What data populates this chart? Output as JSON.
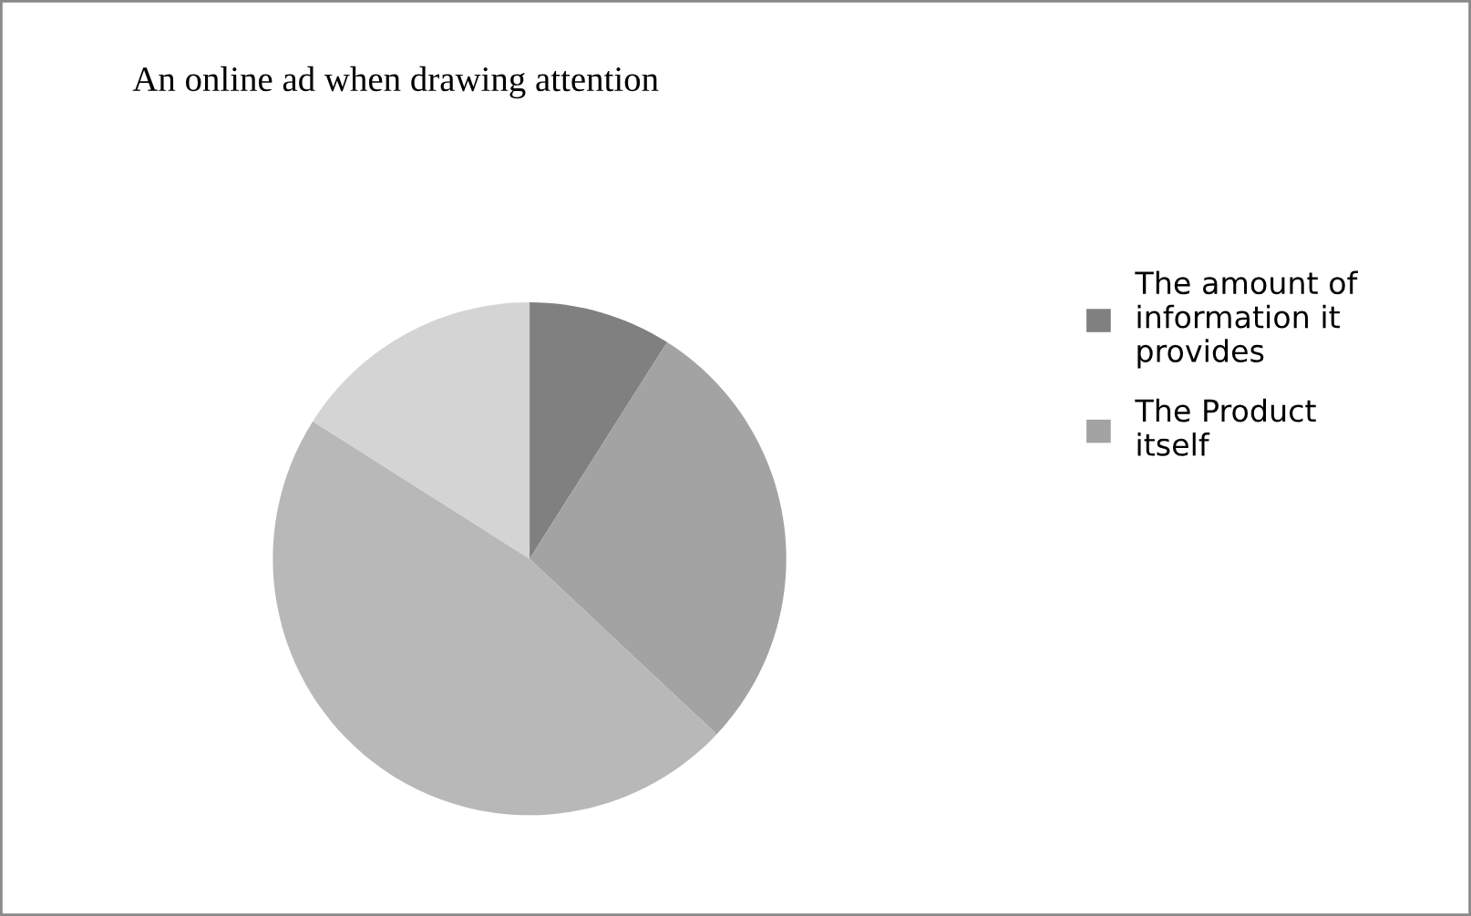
{
  "chart_data": {
    "type": "pie",
    "title": "An online ad when drawing attention",
    "categories": [
      "The amount of information it provides",
      "The Product itself",
      null,
      null
    ],
    "values": [
      9,
      28,
      47,
      16
    ],
    "colors": [
      "#808080",
      "#a3a3a3",
      "#b8b8b8",
      "#d4d4d4"
    ],
    "legend": "right"
  }
}
